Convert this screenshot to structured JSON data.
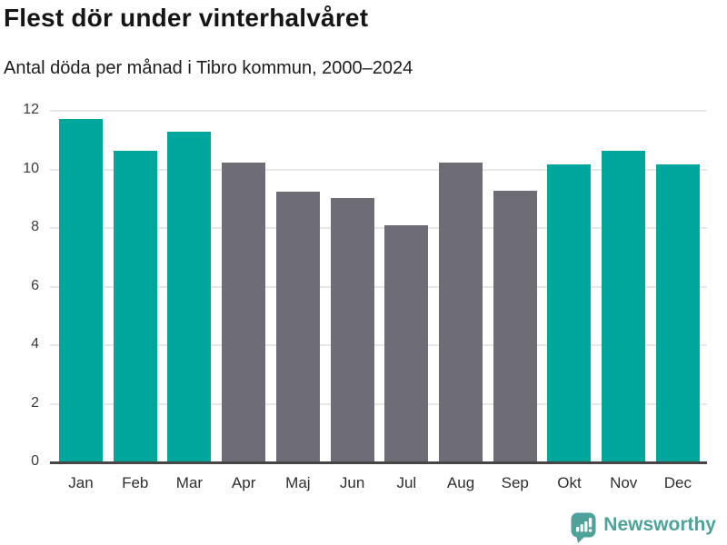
{
  "header": {
    "title": "Flest dör under vinterhalvåret",
    "subtitle": "Antal döda per månad i Tibro kommun, 2000–2024"
  },
  "footer": {
    "logo_text": "Newsworthy",
    "logo_color": "#4EA29A",
    "logo_icon": "speech-bubble-with-bar-chart-and-exclamation"
  },
  "chart_data": {
    "type": "bar",
    "title": "Flest dör under vinterhalvåret",
    "subtitle": "Antal döda per månad i Tibro kommun, 2000–2024",
    "categories": [
      "Jan",
      "Feb",
      "Mar",
      "Apr",
      "Maj",
      "Jun",
      "Jul",
      "Aug",
      "Sep",
      "Okt",
      "Nov",
      "Dec"
    ],
    "values": [
      11.7,
      10.6,
      11.25,
      10.2,
      9.2,
      9.0,
      8.05,
      10.2,
      9.25,
      10.15,
      10.6,
      10.15
    ],
    "highlighted": [
      true,
      true,
      true,
      false,
      false,
      false,
      false,
      false,
      false,
      true,
      true,
      true
    ],
    "bar_colors": {
      "highlight": "#00A69B",
      "default": "#6E6C74"
    },
    "xlabel": "",
    "ylabel": "",
    "ylim": [
      0,
      12
    ],
    "yticks": [
      0,
      2,
      4,
      6,
      8,
      10,
      12
    ],
    "grid": "horizontal-light",
    "gridline_color": "#e8e8e8",
    "axis_line_color": "#464646",
    "legend": "none"
  }
}
